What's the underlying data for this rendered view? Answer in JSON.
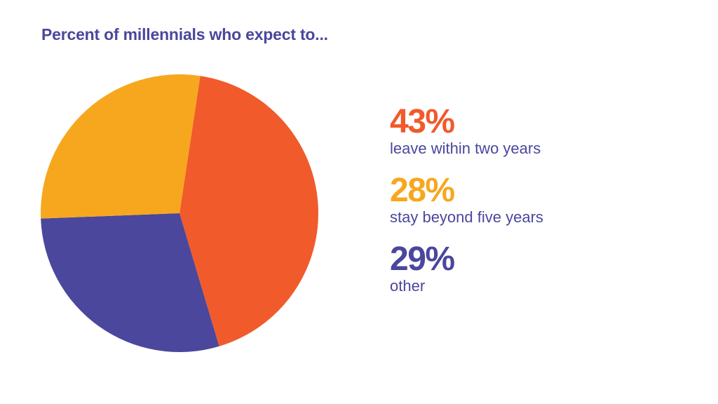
{
  "chart_data": {
    "type": "pie",
    "title": "Percent of millennials who expect to...",
    "slices": [
      {
        "label": "leave within two years",
        "value": 43,
        "display": "43%",
        "color": "#f15a2b"
      },
      {
        "label": "other",
        "value": 29,
        "display": "29%",
        "color": "#4a479c"
      },
      {
        "label": "stay beyond five years",
        "value": 28,
        "display": "28%",
        "color": "#f7a71e"
      }
    ],
    "legend": [
      {
        "display": "43%",
        "label": "leave within two years",
        "color": "#f15a2b"
      },
      {
        "display": "28%",
        "label": "stay beyond five years",
        "color": "#f7a71e"
      },
      {
        "display": "29%",
        "label": "other",
        "color": "#4a479c"
      }
    ],
    "legend_position": "right"
  }
}
